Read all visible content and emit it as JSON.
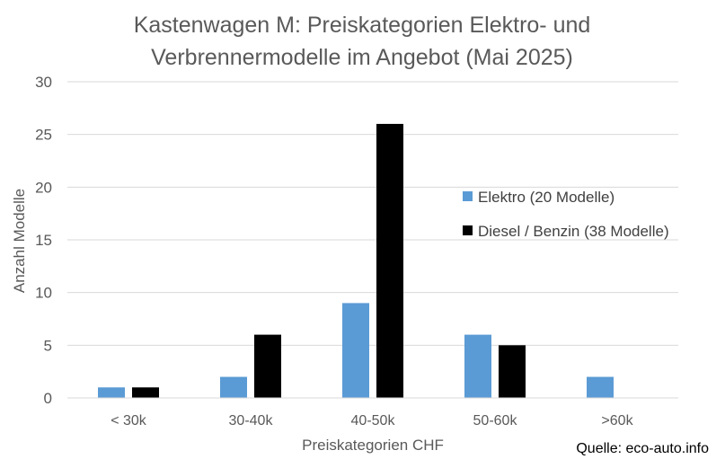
{
  "chart_data": {
    "type": "bar",
    "title_lines": [
      "Kastenwagen M: Preiskategorien Elektro- und",
      "Verbrennermodelle im Angebot (Mai 2025)"
    ],
    "xlabel": "Preiskategorien CHF",
    "ylabel": "Anzahl Modelle",
    "categories": [
      "< 30k",
      "30-40k",
      "40-50k",
      "50-60k",
      ">60k"
    ],
    "series": [
      {
        "name": "Elektro (20 Modelle)",
        "color": "#5b9bd5",
        "values": [
          1,
          2,
          9,
          6,
          2
        ]
      },
      {
        "name": "Diesel / Benzin (38 Modelle)",
        "color": "#000000",
        "values": [
          1,
          6,
          26,
          5,
          0
        ]
      }
    ],
    "ylim": [
      0,
      30
    ],
    "yticks": [
      0,
      5,
      10,
      15,
      20,
      25,
      30
    ],
    "grid": true,
    "legend_position": "right",
    "source": "Quelle: eco-auto.info"
  }
}
